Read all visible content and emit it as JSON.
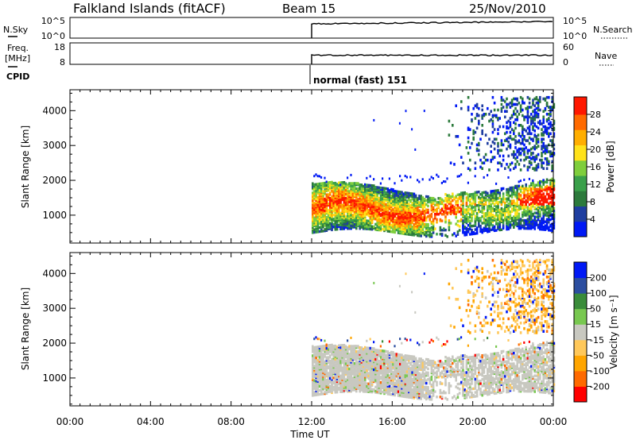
{
  "header": {
    "station": "Falkland Islands (fitACF)",
    "beam": "Beam 15",
    "date": "25/Nov/2010"
  },
  "top_panels": {
    "nsky": {
      "left_label": "N.Sky",
      "right_label": "N.Search",
      "left_ticks": [
        "10^5",
        "10^0"
      ],
      "right_ticks": [
        "10^5",
        "10^0"
      ]
    },
    "freq": {
      "left_label_line1": "Freq.",
      "left_label_line2": "[MHz]",
      "right_label": "Nave",
      "left_ticks": [
        "18",
        "8"
      ],
      "right_ticks": [
        "60",
        "0"
      ]
    },
    "cpid": {
      "label": "CPID",
      "mode_text": "normal (fast) 151"
    }
  },
  "colors": {
    "power_scale": [
      "#0019f5",
      "#1f3ea0",
      "#2c7a3c",
      "#3aa04a",
      "#7fce3c",
      "#ffe21a",
      "#ffae00",
      "#ff6a00",
      "#ff1800"
    ],
    "velocity_scale": [
      "#ff0000",
      "#ff6a00",
      "#ffa500",
      "#ffc85a",
      "#c8c8c0",
      "#78c850",
      "#3a8c3a",
      "#2c4ea0",
      "#0019f5"
    ]
  },
  "chart_data": [
    {
      "type": "heatmap",
      "name": "power",
      "xlabel": "",
      "ylabel": "Slant Range [km]",
      "x_range": [
        "00:00",
        "24:00"
      ],
      "ylim": [
        200,
        4600
      ],
      "y_ticks": [
        1000,
        2000,
        3000,
        4000
      ],
      "colorbar": {
        "label": "Power [dB]",
        "range": [
          0,
          32
        ],
        "ticks": [
          "4",
          "8",
          "12",
          "16",
          "20",
          "24",
          "28"
        ]
      },
      "data_start_time": "12:00"
    },
    {
      "type": "heatmap",
      "name": "velocity",
      "xlabel": "Time UT",
      "ylabel": "Slant Range [km]",
      "x_range": [
        "00:00",
        "24:00"
      ],
      "x_ticks": [
        "00:00",
        "04:00",
        "08:00",
        "12:00",
        "16:00",
        "20:00",
        "00:00"
      ],
      "ylim": [
        200,
        4600
      ],
      "y_ticks": [
        1000,
        2000,
        3000,
        4000
      ],
      "colorbar": {
        "label": "Velocity [m s⁻¹]",
        "ticks": [
          "200",
          "100",
          "50",
          "15",
          "-15",
          "-50",
          "-100",
          "-200"
        ]
      },
      "data_start_time": "12:00"
    }
  ]
}
